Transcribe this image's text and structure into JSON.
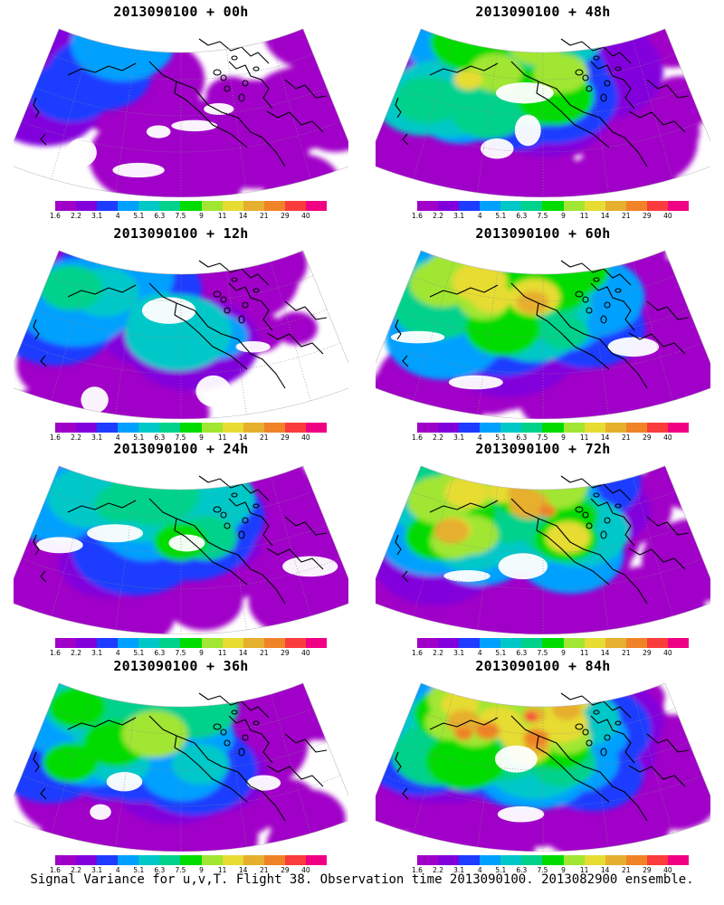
{
  "panels": [
    {
      "id": "p00",
      "title": "2013090100 + 00h",
      "intensity": 0.15
    },
    {
      "id": "p48",
      "title": "2013090100 + 48h",
      "intensity": 0.72
    },
    {
      "id": "p12",
      "title": "2013090100 + 12h",
      "intensity": 0.3
    },
    {
      "id": "p60",
      "title": "2013090100 + 60h",
      "intensity": 0.78
    },
    {
      "id": "p24",
      "title": "2013090100 + 24h",
      "intensity": 0.4
    },
    {
      "id": "p72",
      "title": "2013090100 + 72h",
      "intensity": 0.85
    },
    {
      "id": "p36",
      "title": "2013090100 + 36h",
      "intensity": 0.55
    },
    {
      "id": "p84",
      "title": "2013090100 + 84h",
      "intensity": 0.95
    }
  ],
  "colorbar": {
    "labels": [
      "1.6",
      "2.2",
      "3.1",
      "4",
      "5.1",
      "6.3",
      "7.5",
      "9",
      "11",
      "14",
      "21",
      "29",
      "40"
    ],
    "colors": [
      "#a000c8",
      "#8200dc",
      "#1e3cff",
      "#00a0ff",
      "#00c8c8",
      "#00d28c",
      "#00dc00",
      "#a0e632",
      "#e6dc32",
      "#e6af2d",
      "#f08228",
      "#fa3c3c",
      "#f00082"
    ]
  },
  "caption": "Signal Variance for u,v,T. Flight 38. Observation time 2013090100. 2013082900 ensemble."
}
